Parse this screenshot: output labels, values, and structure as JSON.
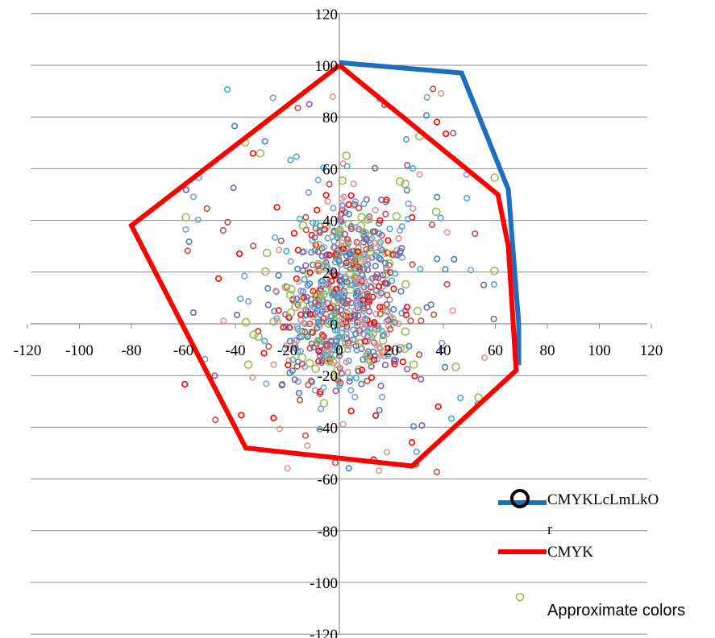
{
  "chart_data": {
    "type": "scatter",
    "xlim": [
      -120,
      120
    ],
    "ylim": [
      -120,
      120
    ],
    "x_ticks": [
      -120,
      -100,
      -80,
      -60,
      -40,
      -20,
      0,
      20,
      40,
      60,
      80,
      100,
      120
    ],
    "y_ticks": [
      -120,
      -100,
      -80,
      -60,
      -40,
      -20,
      0,
      20,
      40,
      60,
      80,
      100,
      120
    ],
    "grid": "horizontal",
    "legend_position": "bottom-right",
    "series": [
      {
        "name": "CMYKLcLmLkOr",
        "kind": "line",
        "color": "#1f6fbf",
        "points": [
          [
            0,
            101
          ],
          [
            47,
            97
          ],
          [
            65,
            52
          ],
          [
            69,
            0
          ],
          [
            69,
            -16
          ]
        ]
      },
      {
        "name": "CMYK",
        "kind": "line",
        "color": "#ff0000",
        "points": [
          [
            0,
            100
          ],
          [
            61,
            50
          ],
          [
            65,
            30
          ],
          [
            68,
            -18
          ],
          [
            28,
            -55
          ],
          [
            -36,
            -48
          ],
          [
            -80,
            38
          ],
          [
            0,
            100
          ]
        ]
      },
      {
        "name": "Approximate colors",
        "kind": "scatter",
        "color": "#9bbb59"
      }
    ],
    "scatter_colors": [
      "#4f81bd",
      "#c0504d",
      "#9bbb59",
      "#8064a2",
      "#4bacc6",
      "#ff0000",
      "#d99694",
      "#7f9fcf"
    ]
  }
}
